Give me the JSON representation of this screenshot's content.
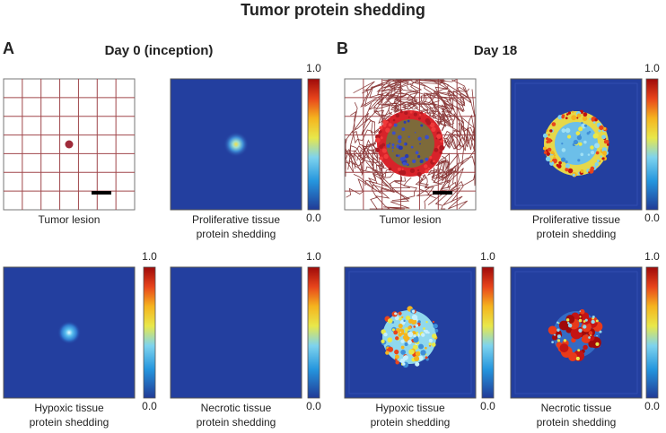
{
  "title": "Tumor protein shedding",
  "panels": [
    {
      "label": "A",
      "title": "Day 0 (inception)",
      "images": [
        {
          "caption": [
            "Tumor lesion"
          ]
        },
        {
          "caption": [
            "Proliferative tissue",
            "protein shedding"
          ],
          "colorbar": {
            "max": "1.0",
            "min": "0.0"
          }
        },
        {
          "caption": [
            "Hypoxic tissue",
            "protein shedding"
          ],
          "colorbar": {
            "max": "1.0",
            "min": "0.0"
          }
        },
        {
          "caption": [
            "Necrotic tissue",
            "protein shedding"
          ],
          "colorbar": {
            "max": "1.0",
            "min": "0.0"
          }
        }
      ]
    },
    {
      "label": "B",
      "title": "Day 18",
      "images": [
        {
          "caption": [
            "Tumor lesion"
          ]
        },
        {
          "caption": [
            "Proliferative tissue",
            "protein shedding"
          ],
          "colorbar": {
            "max": "1.0",
            "min": "0.0"
          }
        },
        {
          "caption": [
            "Hypoxic tissue",
            "protein shedding"
          ],
          "colorbar": {
            "max": "1.0",
            "min": "0.0"
          }
        },
        {
          "caption": [
            "Necrotic tissue",
            "protein shedding"
          ],
          "colorbar": {
            "max": "1.0",
            "min": "0.0"
          }
        }
      ]
    }
  ]
}
